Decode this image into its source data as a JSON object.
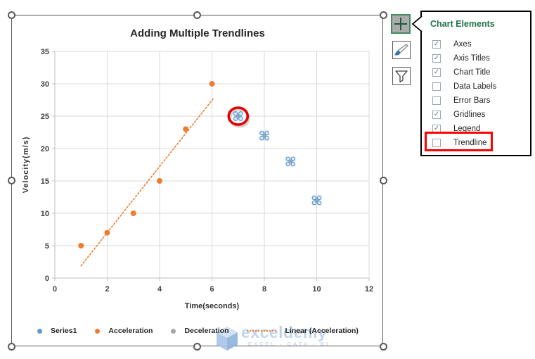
{
  "chart_data": {
    "type": "scatter",
    "title": "Adding Multiple Trendlines",
    "xlabel": "Time(seconds)",
    "ylabel": "Velocity(m/s)",
    "xlim": [
      0,
      12
    ],
    "ylim": [
      0,
      35
    ],
    "x_ticks": [
      0,
      2,
      4,
      6,
      8,
      10,
      12
    ],
    "y_ticks": [
      0,
      5,
      10,
      15,
      20,
      25,
      30,
      35
    ],
    "grid": true,
    "legend_position": "bottom",
    "series": [
      {
        "name": "Series1",
        "color": "#5B9BD5",
        "marker": "selected-point",
        "points": [
          [
            7,
            25
          ],
          [
            8,
            22
          ],
          [
            9,
            18
          ],
          [
            10,
            12
          ]
        ]
      },
      {
        "name": "Acceleration",
        "color": "#ED7D31",
        "marker": "dot",
        "points": [
          [
            1,
            5
          ],
          [
            2,
            7
          ],
          [
            3,
            10
          ],
          [
            4,
            15
          ],
          [
            5,
            23
          ],
          [
            6,
            30
          ]
        ]
      },
      {
        "name": "Deceleration",
        "color": "#A5A5A5",
        "marker": "dot",
        "points": []
      },
      {
        "name": "Linear (Acceleration)",
        "color": "#ED7D31",
        "marker": "dotted-line",
        "line": [
          [
            1,
            1.9
          ],
          [
            6.05,
            27.7
          ]
        ]
      }
    ],
    "annotations": [
      {
        "type": "red-circle",
        "at": [
          7,
          25
        ]
      }
    ]
  },
  "chart_elements_panel": {
    "title": "Chart Elements",
    "items": [
      {
        "label": "Axes",
        "checked": true,
        "highlighted": false
      },
      {
        "label": "Axis Titles",
        "checked": true,
        "highlighted": false
      },
      {
        "label": "Chart Title",
        "checked": true,
        "highlighted": false
      },
      {
        "label": "Data Labels",
        "checked": false,
        "highlighted": false
      },
      {
        "label": "Error Bars",
        "checked": false,
        "highlighted": false
      },
      {
        "label": "Gridlines",
        "checked": true,
        "highlighted": false
      },
      {
        "label": "Legend",
        "checked": true,
        "highlighted": false
      },
      {
        "label": "Trendline",
        "checked": false,
        "highlighted": true
      }
    ]
  },
  "side_buttons": [
    {
      "name": "chart-elements-button",
      "icon": "plus-icon",
      "active": true
    },
    {
      "name": "chart-styles-button",
      "icon": "brush-icon",
      "active": false
    },
    {
      "name": "chart-filters-button",
      "icon": "funnel-icon",
      "active": false
    }
  ],
  "watermark": {
    "brand": "exceldemy",
    "tagline": "EXCEL - DATA - BI"
  },
  "colors": {
    "series_blue": "#5B9BD5",
    "series_orange": "#ED7D31",
    "series_gray": "#A5A5A5",
    "gridline": "#D9D9D9",
    "axis": "#BFBFBF",
    "text": "#404040",
    "title_text": "#262626",
    "panel_green": "#217346",
    "highlight_red": "#FF0000",
    "handle_gray": "#595959"
  }
}
